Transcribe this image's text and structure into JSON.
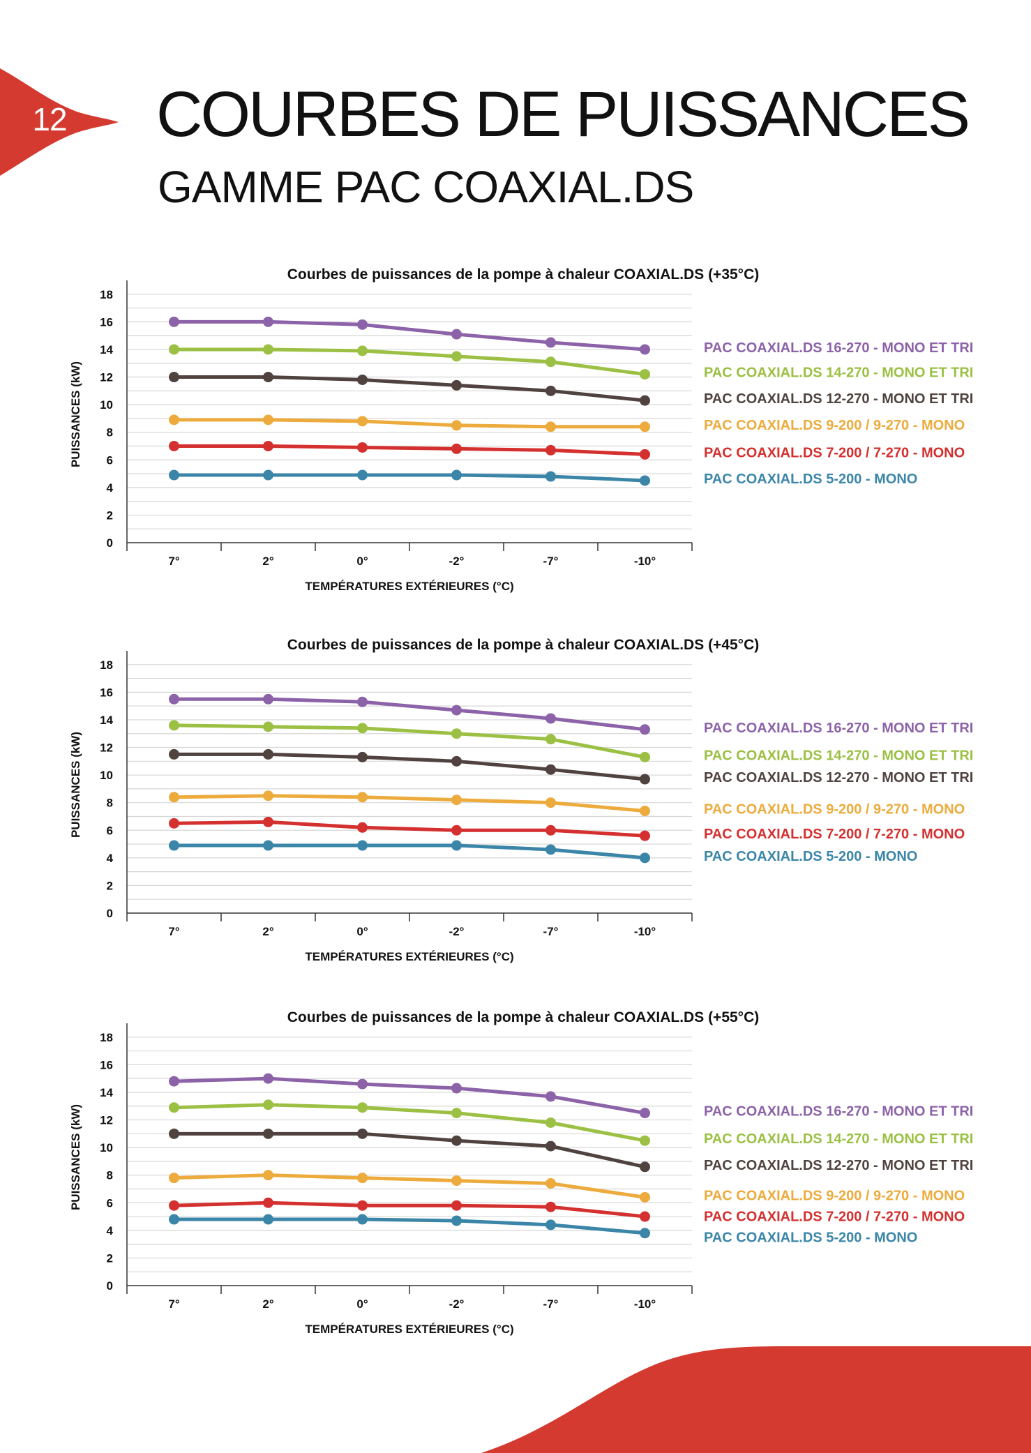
{
  "page_number": "12",
  "title": "COURBES DE PUISSANCES",
  "subtitle": "GAMME PAC COAXIAL.DS",
  "colors": {
    "accent": "#d43a2f",
    "purple": "#8c62a8",
    "green": "#9bc043",
    "brown": "#4f423f",
    "yellow": "#ecab3c",
    "red": "#d4302f",
    "blue": "#3b86a8"
  },
  "chart_data": [
    {
      "type": "line",
      "title": "Courbes de puissances de la pompe à chaleur COAXIAL.DS (+35°C)",
      "xlabel": "TEMPÉRATURES EXTÉRIEURES (°C)",
      "ylabel": "PUISSANCES (kW)",
      "categories": [
        "7°",
        "2°",
        "0°",
        "-2°",
        "-7°",
        "-10°"
      ],
      "yticks": [
        "0",
        "2",
        "4",
        "6",
        "8",
        "10",
        "12",
        "14",
        "16",
        "18"
      ],
      "ylim": [
        0,
        19
      ],
      "grid": true,
      "legend_placement": "right",
      "series": [
        {
          "name": "PAC COAXIAL.DS 16-270 - MONO ET TRI",
          "color": "#8c62a8",
          "values": [
            16.0,
            16.0,
            15.8,
            15.1,
            14.5,
            14.0
          ]
        },
        {
          "name": "PAC COAXIAL.DS 14-270 - MONO ET TRI",
          "color": "#9bc043",
          "values": [
            14.0,
            14.0,
            13.9,
            13.5,
            13.1,
            12.2
          ]
        },
        {
          "name": "PAC COAXIAL.DS 12-270 - MONO ET TRI",
          "color": "#4f423f",
          "values": [
            12.0,
            12.0,
            11.8,
            11.4,
            11.0,
            10.3
          ]
        },
        {
          "name": "PAC COAXIAL.DS 9-200 / 9-270 - MONO",
          "color": "#ecab3c",
          "values": [
            8.9,
            8.9,
            8.8,
            8.5,
            8.4,
            8.4
          ]
        },
        {
          "name": "PAC COAXIAL.DS 7-200 / 7-270 - MONO",
          "color": "#d4302f",
          "values": [
            7.0,
            7.0,
            6.9,
            6.8,
            6.7,
            6.4
          ]
        },
        {
          "name": "PAC COAXIAL.DS 5-200 - MONO",
          "color": "#3b86a8",
          "values": [
            4.9,
            4.9,
            4.9,
            4.9,
            4.8,
            4.5
          ]
        }
      ]
    },
    {
      "type": "line",
      "title": "Courbes de puissances de la pompe à chaleur COAXIAL.DS (+45°C)",
      "xlabel": "TEMPÉRATURES EXTÉRIEURES (°C)",
      "ylabel": "PUISSANCES (kW)",
      "categories": [
        "7°",
        "2°",
        "0°",
        "-2°",
        "-7°",
        "-10°"
      ],
      "yticks": [
        "0",
        "2",
        "4",
        "6",
        "8",
        "10",
        "12",
        "14",
        "16",
        "18"
      ],
      "ylim": [
        0,
        19
      ],
      "grid": true,
      "legend_placement": "right",
      "series": [
        {
          "name": "PAC COAXIAL.DS 16-270 - MONO ET TRI",
          "color": "#8c62a8",
          "values": [
            15.5,
            15.5,
            15.3,
            14.7,
            14.1,
            13.3
          ]
        },
        {
          "name": "PAC COAXIAL.DS 14-270 - MONO ET TRI",
          "color": "#9bc043",
          "values": [
            13.6,
            13.5,
            13.4,
            13.0,
            12.6,
            11.3
          ]
        },
        {
          "name": "PAC COAXIAL.DS 12-270 - MONO ET TRI",
          "color": "#4f423f",
          "values": [
            11.5,
            11.5,
            11.3,
            11.0,
            10.4,
            9.7
          ]
        },
        {
          "name": "PAC COAXIAL.DS 9-200 / 9-270 - MONO",
          "color": "#ecab3c",
          "values": [
            8.4,
            8.5,
            8.4,
            8.2,
            8.0,
            7.4
          ]
        },
        {
          "name": "PAC COAXIAL.DS 7-200 / 7-270 - MONO",
          "color": "#d4302f",
          "values": [
            6.5,
            6.6,
            6.2,
            6.0,
            6.0,
            5.6
          ]
        },
        {
          "name": "PAC COAXIAL.DS 5-200 - MONO",
          "color": "#3b86a8",
          "values": [
            4.9,
            4.9,
            4.9,
            4.9,
            4.6,
            4.0
          ]
        }
      ]
    },
    {
      "type": "line",
      "title": "Courbes de puissances de la pompe à chaleur COAXIAL.DS (+55°C)",
      "xlabel": "TEMPÉRATURES EXTÉRIEURES (°C)",
      "ylabel": "PUISSANCES (kW)",
      "categories": [
        "7°",
        "2°",
        "0°",
        "-2°",
        "-7°",
        "-10°"
      ],
      "yticks": [
        "0",
        "2",
        "4",
        "6",
        "8",
        "10",
        "12",
        "14",
        "16",
        "18"
      ],
      "ylim": [
        0,
        19
      ],
      "grid": true,
      "legend_placement": "right",
      "series": [
        {
          "name": "PAC COAXIAL.DS 16-270 - MONO ET TRI",
          "color": "#8c62a8",
          "values": [
            14.8,
            15.0,
            14.6,
            14.3,
            13.7,
            12.5
          ]
        },
        {
          "name": "PAC COAXIAL.DS 14-270 - MONO ET TRI",
          "color": "#9bc043",
          "values": [
            12.9,
            13.1,
            12.9,
            12.5,
            11.8,
            10.5
          ]
        },
        {
          "name": "PAC COAXIAL.DS 12-270 - MONO ET TRI",
          "color": "#4f423f",
          "values": [
            11.0,
            11.0,
            11.0,
            10.5,
            10.1,
            8.6
          ]
        },
        {
          "name": "PAC COAXIAL.DS 9-200 / 9-270 - MONO",
          "color": "#ecab3c",
          "values": [
            7.8,
            8.0,
            7.8,
            7.6,
            7.4,
            6.4
          ]
        },
        {
          "name": "PAC COAXIAL.DS 7-200 / 7-270 - MONO",
          "color": "#d4302f",
          "values": [
            5.8,
            6.0,
            5.8,
            5.8,
            5.7,
            5.0
          ]
        },
        {
          "name": "PAC COAXIAL.DS 5-200 - MONO",
          "color": "#3b86a8",
          "values": [
            4.8,
            4.8,
            4.8,
            4.7,
            4.4,
            3.8
          ]
        }
      ]
    }
  ]
}
